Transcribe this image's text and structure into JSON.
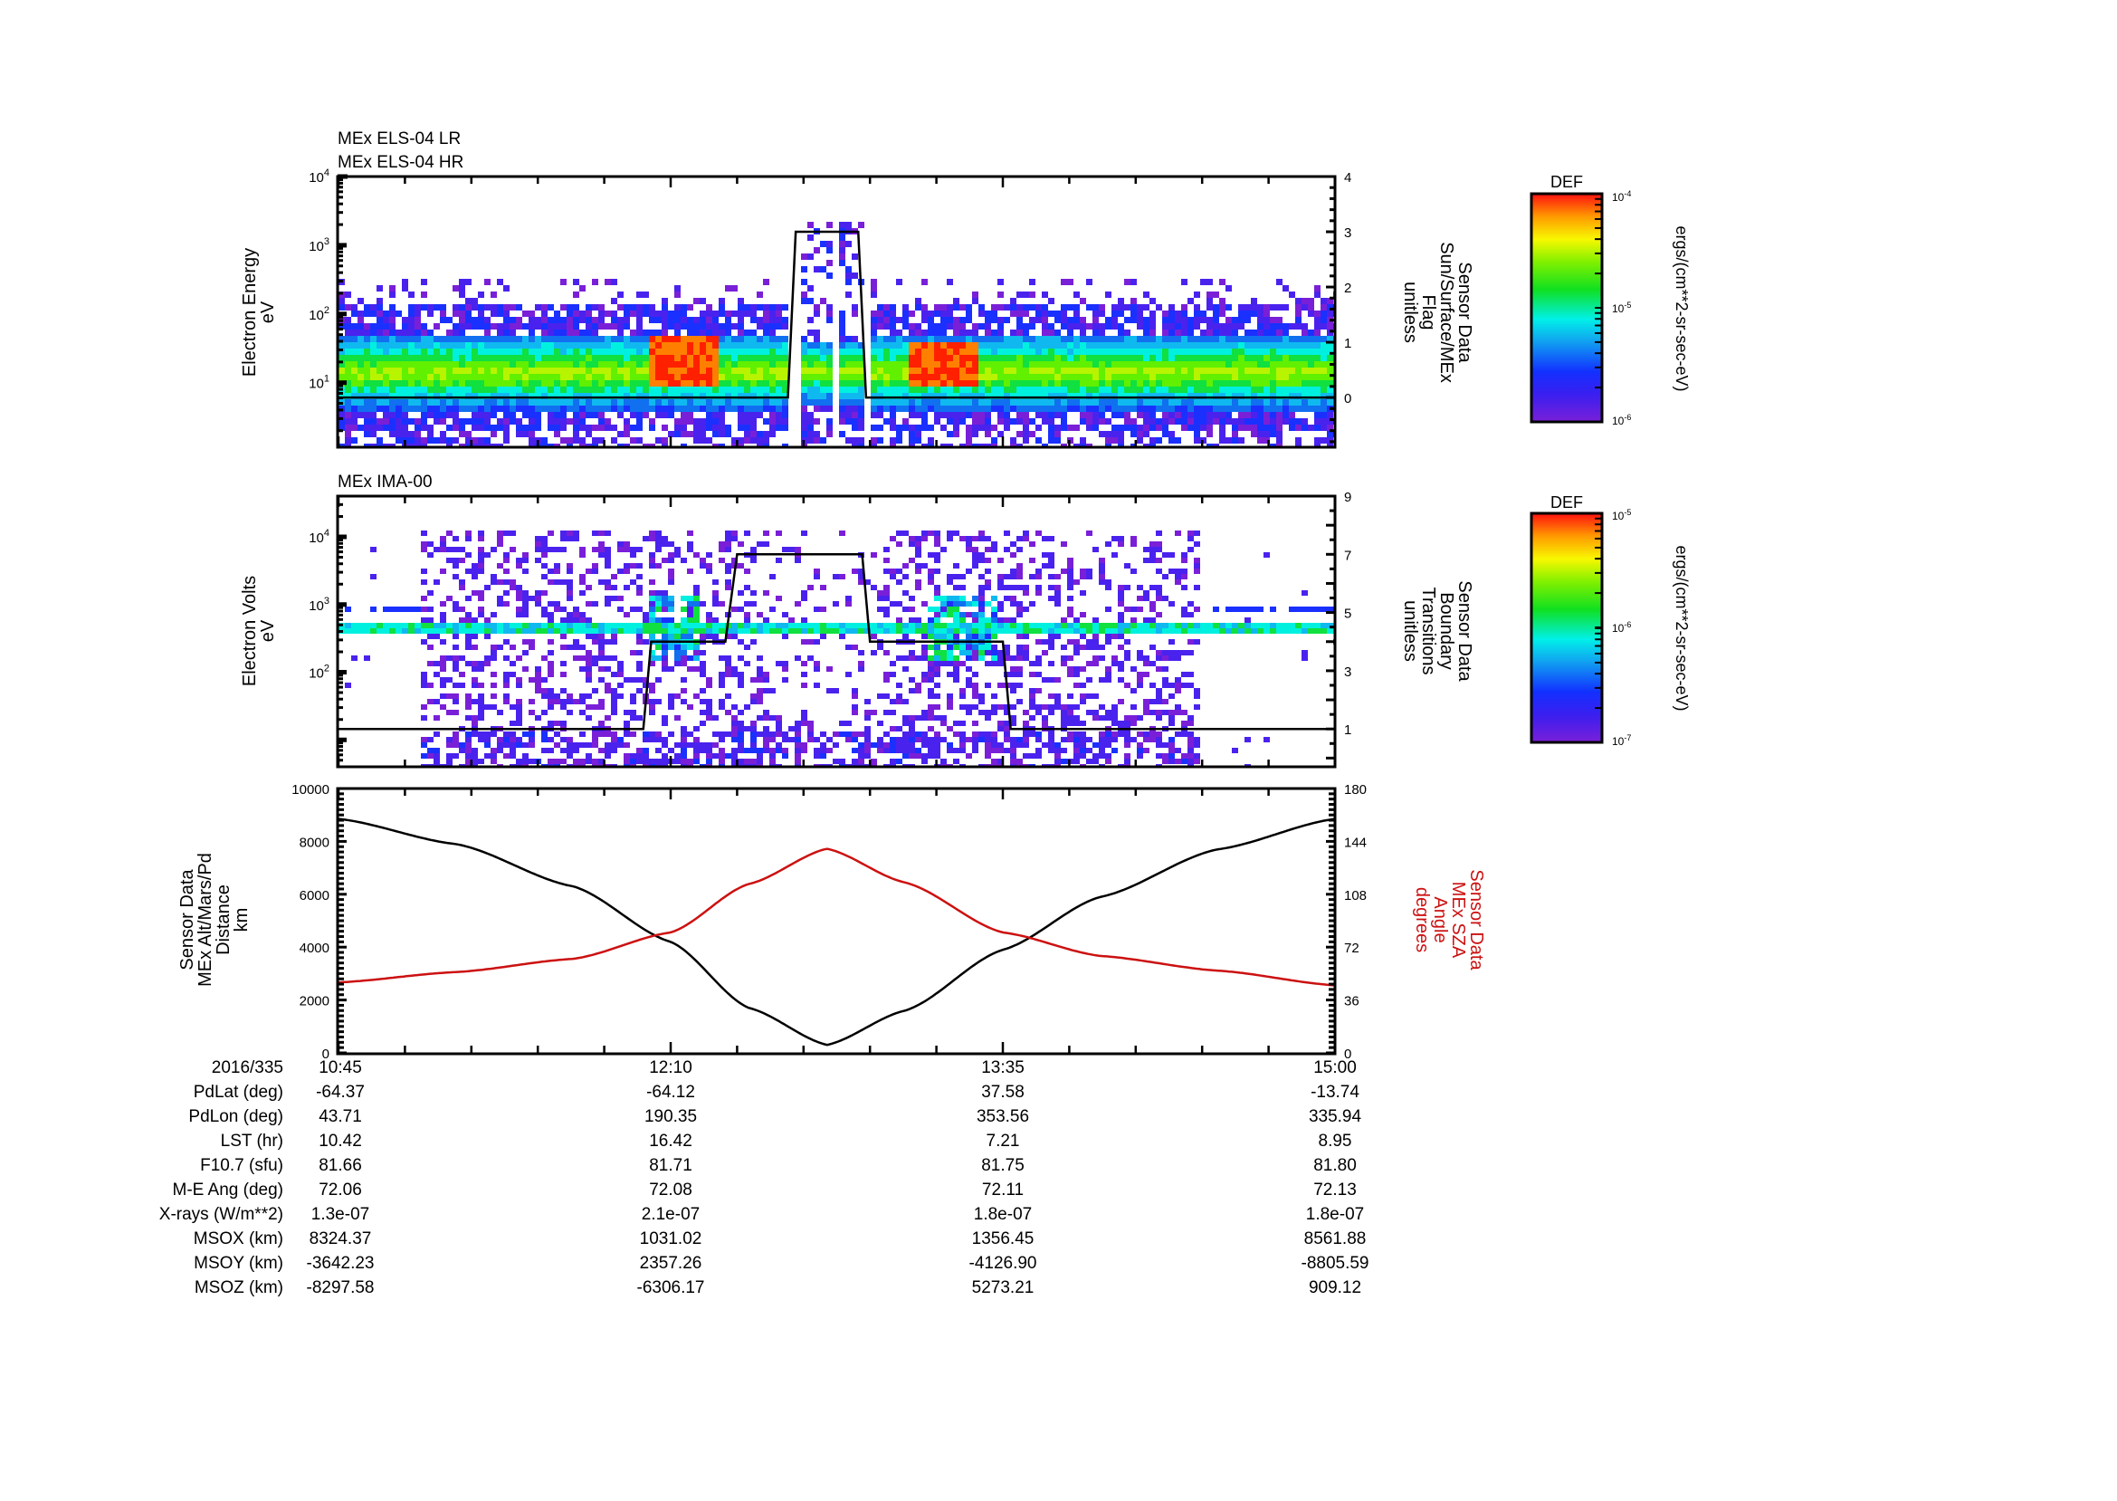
{
  "chart_data": [
    {
      "type": "heatmap",
      "panel": "top",
      "titles": [
        "MEx ELS-04 LR",
        "MEx ELS-04 HR"
      ],
      "ylabel": [
        "Electron Energy",
        "eV"
      ],
      "yscale": "log",
      "ylim": [
        1,
        10000
      ],
      "yticks": [
        "10^1",
        "10^2",
        "10^3",
        "10^4"
      ],
      "y2label": [
        "Sensor Data",
        "Sun/Surface/MEx",
        "Flag",
        "unitless"
      ],
      "y2lim": [
        -0.9,
        4
      ],
      "y2ticks": [
        0,
        1,
        2,
        3,
        4
      ],
      "colorbar": {
        "label": "DEF",
        "units": "ergs/(cm**2-sr-sec-eV)",
        "min": "10^-6",
        "mid": "10^-5",
        "max": "10^-4"
      },
      "line_series": {
        "name": "Sun/Surface/MEx Flag",
        "x_time": [
          "10:45",
          "12:40",
          "12:42",
          "12:58",
          "13:00",
          "15:00"
        ],
        "values": [
          0,
          0,
          3,
          3,
          0,
          0
        ]
      },
      "description": "Electron spectrogram: broad green/yellow band ~3-60 eV throughout; intense red flux ~10-50 eV near 12:05-12:20 and 13:10-13:25; data gap with reduced flux 12:40-13:00"
    },
    {
      "type": "heatmap",
      "panel": "middle",
      "title": "MEx IMA-00",
      "ylabel": [
        "Electron Volts",
        "eV"
      ],
      "yscale": "log",
      "ylim": [
        4,
        40000
      ],
      "yticks": [
        "10^2",
        "10^3",
        "10^4"
      ],
      "y2label": [
        "Sensor Data",
        "Boundary",
        "Transitions",
        "unitless"
      ],
      "y2lim": [
        -0.3,
        9
      ],
      "y2ticks": [
        1,
        3,
        5,
        7,
        9
      ],
      "colorbar": {
        "label": "DEF",
        "units": "ergs/(cm**2-sr-sec-eV)",
        "min": "10^-7",
        "mid": "10^-6",
        "max": "10^-5"
      },
      "line_series": {
        "name": "Boundary Transitions",
        "x_time": [
          "10:45",
          "12:03",
          "12:05",
          "12:24",
          "12:27",
          "12:59",
          "13:01",
          "13:35",
          "13:37",
          "15:00"
        ],
        "values": [
          1,
          1,
          4,
          4,
          7,
          7,
          4,
          4,
          1,
          1
        ]
      },
      "description": "Ion spectrogram: persistent band ~500 eV and ~1000 eV; scattered counts 11:05-14:25; enhanced flux ~200-1000 eV near 12:05-12:15 and 13:20-13:35"
    },
    {
      "type": "line",
      "panel": "bottom",
      "ylabel": [
        "Sensor Data",
        "MEx Alt/Mars/Pd",
        "Distance",
        "km"
      ],
      "ylim": [
        0,
        10000
      ],
      "yticks": [
        0,
        2000,
        4000,
        6000,
        8000,
        10000
      ],
      "y2label": [
        "Sensor Data",
        "MEx SZA",
        "Angle",
        "degrees"
      ],
      "y2lim": [
        0,
        180
      ],
      "y2ticks": [
        0,
        36,
        72,
        108,
        144,
        180
      ],
      "x": [
        "10:45",
        "11:15",
        "11:45",
        "12:10",
        "12:30",
        "12:50",
        "13:10",
        "13:35",
        "14:00",
        "14:30",
        "15:00"
      ],
      "series": [
        {
          "name": "MEx Alt (km)",
          "color": "#000000",
          "axis": "left",
          "values": [
            8850,
            7900,
            6300,
            4200,
            1700,
            300,
            1600,
            3900,
            5900,
            7700,
            8850
          ]
        },
        {
          "name": "MEx SZA (deg)",
          "color": "#cc1111",
          "axis": "right",
          "values": [
            48,
            55,
            64,
            82,
            115,
            139,
            116,
            82,
            66,
            56,
            46
          ]
        }
      ]
    }
  ],
  "x_axis": {
    "date": "2016/335",
    "ticks": [
      "10:45",
      "12:10",
      "13:35",
      "15:00"
    ],
    "minor_per_major": 5
  },
  "table": {
    "rows": [
      {
        "label": "2016/335",
        "values": [
          "10:45",
          "12:10",
          "13:35",
          "15:00"
        ]
      },
      {
        "label": "PdLat (deg)",
        "values": [
          "-64.37",
          "-64.12",
          "37.58",
          "-13.74"
        ]
      },
      {
        "label": "PdLon (deg)",
        "values": [
          "43.71",
          "190.35",
          "353.56",
          "335.94"
        ]
      },
      {
        "label": "LST (hr)",
        "values": [
          "10.42",
          "16.42",
          "7.21",
          "8.95"
        ]
      },
      {
        "label": "F10.7 (sfu)",
        "values": [
          "81.66",
          "81.71",
          "81.75",
          "81.80"
        ]
      },
      {
        "label": "M-E Ang (deg)",
        "values": [
          "72.06",
          "72.08",
          "72.11",
          "72.13"
        ]
      },
      {
        "label": "X-rays (W/m**2)",
        "values": [
          "1.3e-07",
          "2.1e-07",
          "1.8e-07",
          "1.8e-07"
        ]
      },
      {
        "label": "MSOX (km)",
        "values": [
          "8324.37",
          "1031.02",
          "1356.45",
          "8561.88"
        ]
      },
      {
        "label": "MSOY (km)",
        "values": [
          "-3642.23",
          "2357.26",
          "-4126.90",
          "-8805.59"
        ]
      },
      {
        "label": "MSOZ (km)",
        "values": [
          "-8297.58",
          "-6306.17",
          "5273.21",
          "909.12"
        ]
      }
    ]
  },
  "colors": {
    "alt_line": "#000000",
    "sza_line": "#cc1111",
    "sza_label": "#cc1111"
  }
}
